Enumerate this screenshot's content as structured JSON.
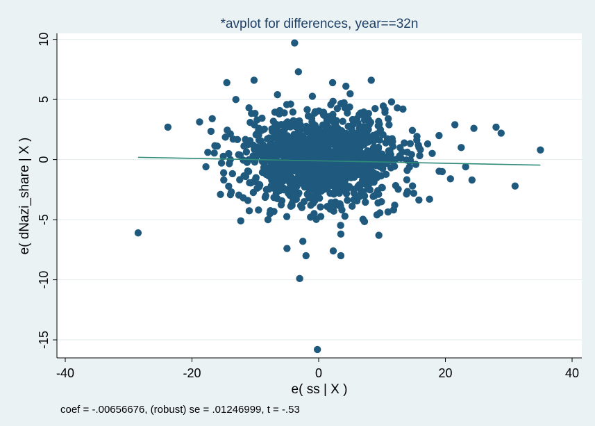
{
  "chart_data": {
    "type": "scatter",
    "title": "*avplot for differences, year==32n",
    "xlabel": "e( ss | X )",
    "ylabel": "e( dNazi_share | X )",
    "note": "coef = -.00656676, (robust) se = .01246999, t = -.53",
    "xlim": [
      -40,
      40
    ],
    "ylim": [
      -16.5,
      10.5
    ],
    "xticks": [
      -40,
      -20,
      0,
      20,
      40
    ],
    "yticks": [
      -15,
      -10,
      -5,
      0,
      5,
      10
    ],
    "grid": true,
    "colors": {
      "points": "#1f5a7e",
      "fit_line": "#2e8b78",
      "plot_bg": "#ffffff",
      "page_bg": "#eaf2f3",
      "grid": "#e2ecee"
    },
    "fit_line": {
      "slope": -0.00656676,
      "intercept": 0,
      "x_range": [
        -28.5,
        35
      ]
    },
    "outliers": [
      {
        "x": -28.5,
        "y": -6.1
      },
      {
        "x": -23.8,
        "y": 2.7
      },
      {
        "x": -17.8,
        "y": -0.6
      },
      {
        "x": -17.5,
        "y": 0.6
      },
      {
        "x": -16.8,
        "y": 3.4
      },
      {
        "x": -14.5,
        "y": 6.4
      },
      {
        "x": -12.3,
        "y": -5.1
      },
      {
        "x": -10.2,
        "y": 6.6
      },
      {
        "x": -5.0,
        "y": -7.4
      },
      {
        "x": -3.8,
        "y": 9.7
      },
      {
        "x": -3.2,
        "y": 7.3
      },
      {
        "x": -3.0,
        "y": -9.9
      },
      {
        "x": -2.5,
        "y": -6.8
      },
      {
        "x": -2.0,
        "y": -8.0
      },
      {
        "x": -0.2,
        "y": -15.8
      },
      {
        "x": 2.2,
        "y": 6.4
      },
      {
        "x": 4.3,
        "y": 6.1
      },
      {
        "x": 8.3,
        "y": 6.6
      },
      {
        "x": 2.3,
        "y": -7.6
      },
      {
        "x": 3.5,
        "y": -8.0
      },
      {
        "x": 3.5,
        "y": -6.2
      },
      {
        "x": 9.5,
        "y": -6.3
      },
      {
        "x": 9.2,
        "y": -4.6
      },
      {
        "x": 11.5,
        "y": 4.8
      },
      {
        "x": 13.3,
        "y": 4.2
      },
      {
        "x": 21.5,
        "y": 2.9
      },
      {
        "x": 24.5,
        "y": 2.6
      },
      {
        "x": 24.2,
        "y": -1.7
      },
      {
        "x": 28.0,
        "y": 2.7
      },
      {
        "x": 28.8,
        "y": 2.2
      },
      {
        "x": 31.0,
        "y": -2.2
      },
      {
        "x": 35.0,
        "y": 0.8
      },
      {
        "x": 22.5,
        "y": 1.0
      },
      {
        "x": 20.8,
        "y": -1.6
      },
      {
        "x": 19.5,
        "y": -1.0
      },
      {
        "x": 23.2,
        "y": -0.6
      },
      {
        "x": 17.5,
        "y": -3.3
      },
      {
        "x": 15.0,
        "y": -2.8
      },
      {
        "x": -15.5,
        "y": -2.9
      },
      {
        "x": -15.0,
        "y": -1.1
      },
      {
        "x": -13.5,
        "y": 1.7
      },
      {
        "x": -11.0,
        "y": 4.3
      },
      {
        "x": -9.5,
        "y": -4.2
      },
      {
        "x": -8.0,
        "y": -5.0
      },
      {
        "x": 17.2,
        "y": 1.3
      },
      {
        "x": 19.0,
        "y": 2.0
      },
      {
        "x": 12.0,
        "y": -3.8
      },
      {
        "x": -6.5,
        "y": 5.4
      }
    ],
    "cluster": {
      "n": 1350,
      "seed": 1932
    },
    "cluster_range_note": "",
    "points_rendered_as": "dots"
  }
}
